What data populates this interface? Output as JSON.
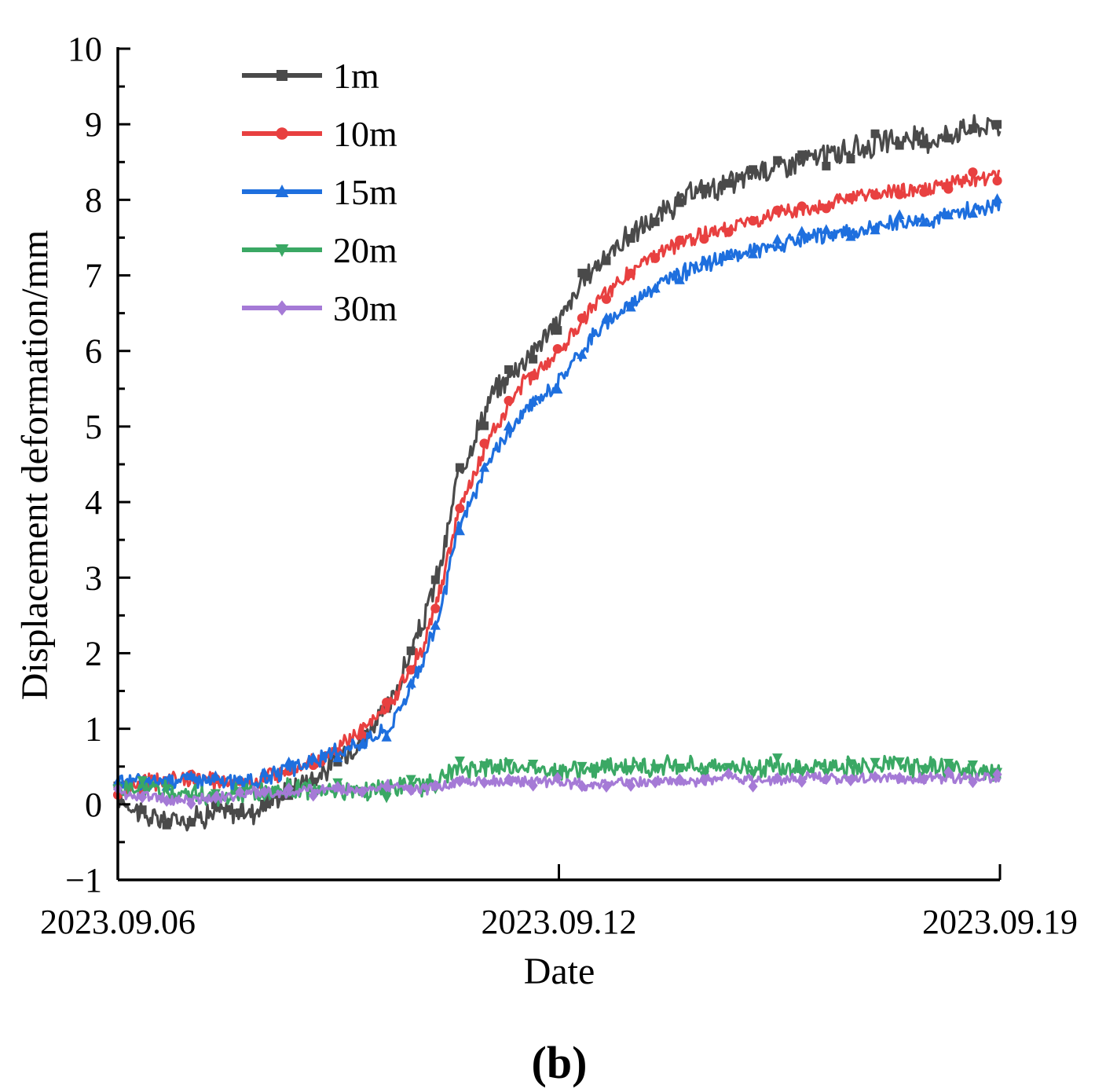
{
  "chart_data": {
    "type": "line",
    "xlabel": "Date",
    "ylabel": "Displacement deformation/mm",
    "panel_label": "(b)",
    "x_range": [
      0,
      13
    ],
    "ylim": [
      -1,
      10
    ],
    "y_ticks": [
      -1,
      0,
      1,
      2,
      3,
      4,
      5,
      6,
      7,
      8,
      9,
      10
    ],
    "y_tick_labels": [
      "−1",
      "0",
      "1",
      "2",
      "3",
      "4",
      "5",
      "6",
      "7",
      "8",
      "9",
      "10"
    ],
    "x_ticks": [
      {
        "value": 0,
        "label": "2023.09.06"
      },
      {
        "value": 6.5,
        "label": "2023.09.12"
      },
      {
        "value": 13,
        "label": "2023.09.19"
      }
    ],
    "grid": false,
    "legend_position": "top-left",
    "series": [
      {
        "name": "1m",
        "color": "#4a4a4a",
        "marker": "square",
        "x": [
          0,
          0.5,
          1,
          1.5,
          2,
          2.5,
          3,
          3.5,
          4,
          4.5,
          4.8,
          5,
          5.5,
          6,
          6.5,
          7,
          7.5,
          8,
          8.5,
          9,
          9.5,
          10,
          10.5,
          11,
          11.5,
          12,
          12.5,
          13
        ],
        "y": [
          0.1,
          -0.2,
          -0.2,
          -0.1,
          -0.1,
          0.2,
          0.4,
          0.8,
          1.3,
          2.4,
          3.3,
          4.3,
          5.4,
          5.9,
          6.4,
          7.1,
          7.5,
          7.8,
          8.1,
          8.2,
          8.4,
          8.5,
          8.6,
          8.7,
          8.8,
          8.8,
          8.95,
          9.0
        ]
      },
      {
        "name": "10m",
        "color": "#e84040",
        "marker": "circle",
        "x": [
          0,
          0.5,
          1,
          1.5,
          2,
          2.5,
          3,
          3.5,
          4,
          4.5,
          4.8,
          5,
          5.5,
          6,
          6.5,
          7,
          7.5,
          8,
          8.5,
          9,
          9.5,
          10,
          10.5,
          11,
          11.5,
          12,
          12.5,
          13
        ],
        "y": [
          0.2,
          0.3,
          0.35,
          0.3,
          0.3,
          0.45,
          0.6,
          0.9,
          1.3,
          2.1,
          3.0,
          3.8,
          4.9,
          5.6,
          6.0,
          6.6,
          7.0,
          7.3,
          7.5,
          7.65,
          7.75,
          7.85,
          7.95,
          8.05,
          8.1,
          8.15,
          8.25,
          8.35
        ]
      },
      {
        "name": "15m",
        "color": "#1e6fde",
        "marker": "triangle-up",
        "x": [
          0,
          0.5,
          1,
          1.5,
          2,
          2.5,
          3,
          3.5,
          4,
          4.5,
          4.8,
          5,
          5.5,
          6,
          6.5,
          7,
          7.5,
          8,
          8.5,
          9,
          9.5,
          10,
          10.5,
          11,
          11.5,
          12,
          12.5,
          13
        ],
        "y": [
          0.3,
          0.3,
          0.35,
          0.3,
          0.3,
          0.45,
          0.6,
          0.8,
          1.0,
          1.9,
          2.7,
          3.6,
          4.6,
          5.2,
          5.6,
          6.2,
          6.6,
          6.9,
          7.1,
          7.25,
          7.35,
          7.45,
          7.55,
          7.6,
          7.7,
          7.75,
          7.85,
          7.95
        ]
      },
      {
        "name": "20m",
        "color": "#3aa864",
        "marker": "triangle-down",
        "x": [
          0,
          0.5,
          1,
          1.5,
          2,
          2.5,
          3,
          3.5,
          4,
          4.5,
          4.8,
          5,
          5.5,
          6,
          6.5,
          7,
          7.5,
          8,
          8.5,
          9,
          9.5,
          10,
          10.5,
          11,
          11.5,
          12,
          12.5,
          13
        ],
        "y": [
          0.2,
          0.2,
          0.15,
          0.1,
          0.15,
          0.2,
          0.2,
          0.2,
          0.2,
          0.25,
          0.35,
          0.45,
          0.5,
          0.5,
          0.45,
          0.45,
          0.5,
          0.5,
          0.5,
          0.5,
          0.5,
          0.5,
          0.5,
          0.5,
          0.5,
          0.5,
          0.45,
          0.45
        ]
      },
      {
        "name": "30m",
        "color": "#a57ad6",
        "marker": "diamond",
        "x": [
          0,
          0.5,
          1,
          1.5,
          2,
          2.5,
          3,
          3.5,
          4,
          4.5,
          4.8,
          5,
          5.5,
          6,
          6.5,
          7,
          7.5,
          8,
          8.5,
          9,
          9.5,
          10,
          10.5,
          11,
          11.5,
          12,
          12.5,
          13
        ],
        "y": [
          0.15,
          0.1,
          0.05,
          0.1,
          0.15,
          0.15,
          0.2,
          0.2,
          0.25,
          0.2,
          0.25,
          0.3,
          0.3,
          0.3,
          0.3,
          0.25,
          0.3,
          0.3,
          0.3,
          0.35,
          0.3,
          0.35,
          0.35,
          0.35,
          0.35,
          0.35,
          0.35,
          0.35
        ]
      }
    ]
  }
}
